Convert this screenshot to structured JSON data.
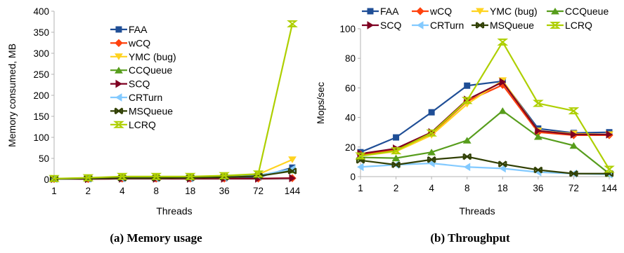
{
  "series_style": [
    {
      "color": "#1f4e96",
      "marker": "square"
    },
    {
      "color": "#ff420e",
      "marker": "diamond"
    },
    {
      "color": "#ffd320",
      "marker": "triangle-down"
    },
    {
      "color": "#579d1c",
      "marker": "triangle-up"
    },
    {
      "color": "#7e0021",
      "marker": "triangle-right"
    },
    {
      "color": "#83caff",
      "marker": "triangle-left"
    },
    {
      "color": "#314004",
      "marker": "bowtie"
    },
    {
      "color": "#aecf00",
      "marker": "hourglass"
    }
  ],
  "chart_data": [
    {
      "type": "line",
      "caption": "(a) Memory usage",
      "xlabel": "Threads",
      "ylabel": "Memory consumed, MB",
      "categories": [
        "1",
        "2",
        "4",
        "8",
        "18",
        "36",
        "72",
        "144"
      ],
      "ylim": [
        0,
        400
      ],
      "yticks": [
        0,
        50,
        100,
        150,
        200,
        250,
        300,
        350,
        400
      ],
      "grid": false,
      "legend_position": "inside-top-center",
      "series": [
        {
          "name": "FAA",
          "values": [
            1,
            1,
            2,
            2,
            2,
            3,
            5,
            28
          ]
        },
        {
          "name": "wCQ",
          "values": [
            1,
            1,
            2,
            2,
            2,
            2,
            2,
            3
          ]
        },
        {
          "name": "YMC (bug)",
          "values": [
            2,
            3,
            5,
            6,
            6,
            8,
            12,
            47
          ]
        },
        {
          "name": "CCQueue",
          "values": [
            2,
            3,
            5,
            5,
            6,
            7,
            10,
            22
          ]
        },
        {
          "name": "SCQ",
          "values": [
            1,
            1,
            2,
            2,
            2,
            2,
            2,
            3
          ]
        },
        {
          "name": "CRTurn",
          "values": [
            1,
            2,
            3,
            3,
            4,
            5,
            9,
            25
          ]
        },
        {
          "name": "MSQueue",
          "values": [
            1,
            2,
            3,
            3,
            4,
            5,
            8,
            20
          ]
        },
        {
          "name": "LCRQ",
          "values": [
            2,
            4,
            7,
            7,
            7,
            9,
            13,
            370
          ]
        }
      ]
    },
    {
      "type": "line",
      "caption": "(b) Throughput",
      "xlabel": "Threads",
      "ylabel": "Mops/sec",
      "categories": [
        "1",
        "2",
        "4",
        "8",
        "18",
        "36",
        "72",
        "144"
      ],
      "ylim": [
        0,
        100
      ],
      "yticks": [
        0,
        20,
        40,
        60,
        80,
        100
      ],
      "grid": false,
      "legend_position": "top",
      "series": [
        {
          "name": "FAA",
          "values": [
            16.5,
            26.5,
            43.5,
            61.5,
            64.5,
            32.5,
            29.5,
            30
          ]
        },
        {
          "name": "wCQ",
          "values": [
            15,
            18,
            29,
            51,
            62,
            30,
            28,
            28
          ]
        },
        {
          "name": "YMC (bug)",
          "values": [
            14,
            17,
            28,
            49,
            65,
            31,
            29,
            28.5
          ]
        },
        {
          "name": "CCQueue",
          "values": [
            13,
            12.5,
            16.5,
            24.5,
            44.5,
            27,
            21,
            2
          ]
        },
        {
          "name": "SCQ",
          "values": [
            15.5,
            19,
            30,
            52,
            64,
            31,
            28.5,
            28.5
          ]
        },
        {
          "name": "CRTurn",
          "values": [
            6.5,
            8,
            9,
            6.5,
            5.5,
            3,
            2,
            1.5
          ]
        },
        {
          "name": "MSQueue",
          "values": [
            11,
            8,
            11.5,
            13.5,
            8.5,
            4.5,
            2,
            2
          ]
        },
        {
          "name": "LCRQ",
          "values": [
            14,
            17.5,
            29.5,
            51.5,
            91,
            49.5,
            44.5,
            5
          ]
        }
      ]
    }
  ]
}
